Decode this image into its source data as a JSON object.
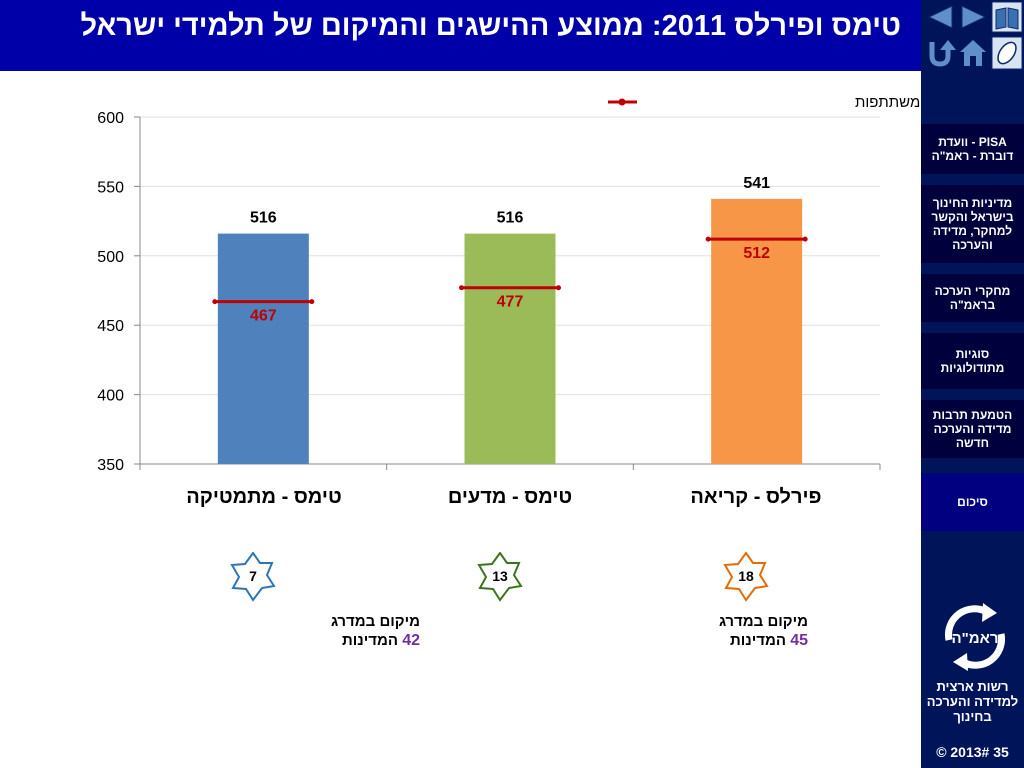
{
  "title": "טימס ופירלס 2011: ממוצע ההישגים והמיקום של תלמידי ישראל",
  "nav_buttons": {
    "prev": "previous-slide",
    "next": "next-slide",
    "book": "book",
    "return": "return",
    "home": "home",
    "mouse": "mouse"
  },
  "sidebar": {
    "items": [
      {
        "label": "PISA - וועדת דוברת - ראמ\"ה"
      },
      {
        "label": "מדיניות החינוך בישראל והקשר למחקר, מדידה והערכה"
      },
      {
        "label": "מחקרי הערכה בראמ\"ה"
      },
      {
        "label": "סוגיות מתודולוגיות"
      },
      {
        "label": "הטמעת תרבות מדידה והערכה חדשה"
      },
      {
        "label": "סיכום"
      }
    ],
    "logo_label": "ראמ\"ה",
    "org_name": "רשות ארצית למדידה והערכה בחינוך",
    "footer": "© 2013# 35"
  },
  "chart_data": {
    "type": "bar",
    "categories": [
      "טימס - מתמטיקה",
      "טימס - מדעים",
      "פירלס - קריאה"
    ],
    "values": [
      516,
      516,
      541
    ],
    "value_labels": [
      "516",
      "516",
      "541"
    ],
    "colors": [
      "#4f81bd",
      "#9bbb59",
      "#f79646"
    ],
    "average_series": {
      "name": "ממוצע המדינות המשתתפות",
      "values": [
        467,
        477,
        512
      ],
      "labels": [
        "467",
        "477",
        "512"
      ],
      "color": "#c00000"
    },
    "ylim": [
      350,
      600
    ],
    "yticks": [
      350,
      400,
      450,
      500,
      550,
      600
    ],
    "ytick_labels": [
      "350",
      "400",
      "450",
      "500",
      "550",
      "600"
    ],
    "legend_position": "top-right",
    "grid": true
  },
  "rankings": {
    "badges": [
      {
        "value": "7",
        "color": "#2e75b6"
      },
      {
        "value": "13",
        "color": "#38761d"
      },
      {
        "value": "18",
        "color": "#e36c09"
      }
    ],
    "notes": [
      {
        "text": "מיקום במדרג",
        "count": "42",
        "suffix": "המדינות"
      },
      {
        "text": "מיקום במדרג",
        "count": "45",
        "suffix": "המדינות"
      }
    ]
  }
}
